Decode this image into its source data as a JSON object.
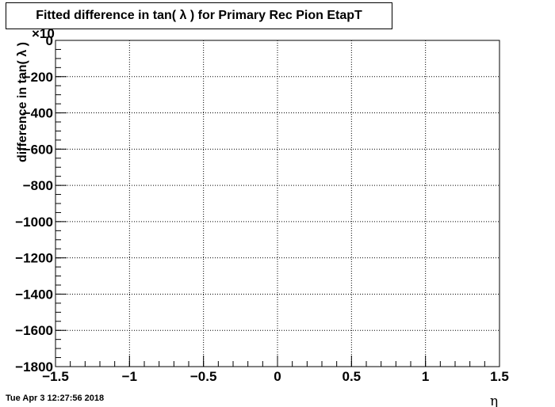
{
  "chart_data": {
    "type": "line",
    "title": "Fitted difference in tan( λ ) for Primary Rec Pion EtapT",
    "xlabel": "η",
    "ylabel": "difference in tan( λ )",
    "exponent_label": "×10",
    "xlim": [
      -1.5,
      1.5
    ],
    "ylim": [
      -1800,
      0
    ],
    "x_ticks": [
      -1.5,
      -1,
      -0.5,
      0,
      0.5,
      1,
      1.5
    ],
    "x_tick_labels": [
      "−1.5",
      "−1",
      "−0.5",
      "0",
      "0.5",
      "1",
      "1.5"
    ],
    "y_ticks": [
      0,
      -200,
      -400,
      -600,
      -800,
      -1000,
      -1200,
      -1400,
      -1600,
      -1800
    ],
    "y_tick_labels": [
      "0",
      "−200",
      "−400",
      "−600",
      "−800",
      "−1000",
      "−1200",
      "−1400",
      "−1600",
      "−1800"
    ],
    "grid": true,
    "series": [
      {
        "color": "#cc0000",
        "x": [
          -1.5,
          1.5
        ],
        "y": [
          0,
          0
        ]
      }
    ]
  },
  "timestamp": "Tue Apr  3 12:27:56 2018"
}
